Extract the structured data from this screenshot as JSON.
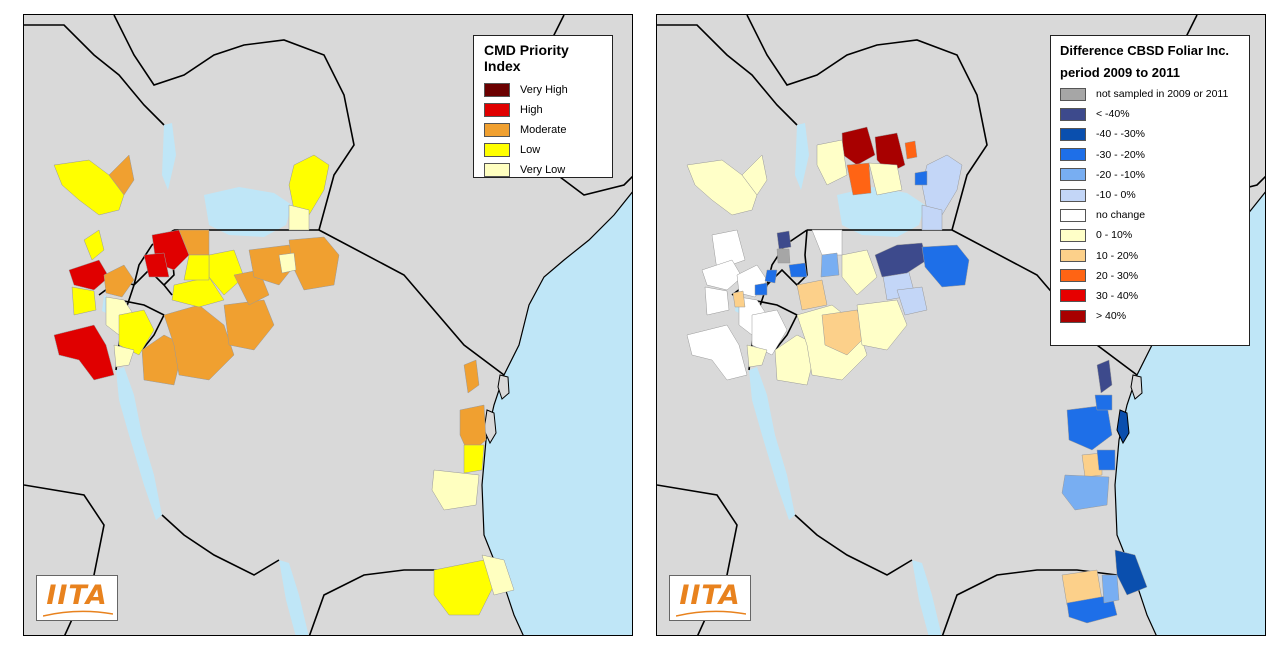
{
  "colors": {
    "land": "#d9d9d9",
    "water": "#bfe6f7",
    "border": "#000000",
    "district_outline": "#888888"
  },
  "maps": [
    {
      "legend_title": "CMD Priority Index",
      "legend_items": [
        {
          "label": "Very High",
          "color": "#6b0000"
        },
        {
          "label": "High",
          "color": "#e00000"
        },
        {
          "label": "Moderate",
          "color": "#f0a030"
        },
        {
          "label": "Low",
          "color": "#ffff00"
        },
        {
          "label": "Very Low",
          "color": "#ffffc0"
        }
      ],
      "logo": "IITA"
    },
    {
      "legend_title_line1": "Difference CBSD Foliar Inc.",
      "legend_title_line2": "period 2009 to 2011",
      "legend_items": [
        {
          "label": "not sampled in 2009 or 2011",
          "color": "#a6a6a6"
        },
        {
          "label": "< -40%",
          "color": "#3d4a8c"
        },
        {
          "label": "-40 - -30%",
          "color": "#0a4fae"
        },
        {
          "label": "-30 - -20%",
          "color": "#1e6fe8"
        },
        {
          "label": "-20 - -10%",
          "color": "#78aef2"
        },
        {
          "label": "-10 - 0%",
          "color": "#c3d6f7"
        },
        {
          "label": "no change",
          "color": "#ffffff"
        },
        {
          "label": "0 - 10%",
          "color": "#ffffc8"
        },
        {
          "label": "10 - 20%",
          "color": "#fcd08a"
        },
        {
          "label": "20 - 30%",
          "color": "#ff6414"
        },
        {
          "label": "30 - 40%",
          "color": "#e60000"
        },
        {
          "label": "> 40%",
          "color": "#a80000"
        }
      ],
      "logo": "IITA"
    }
  ]
}
